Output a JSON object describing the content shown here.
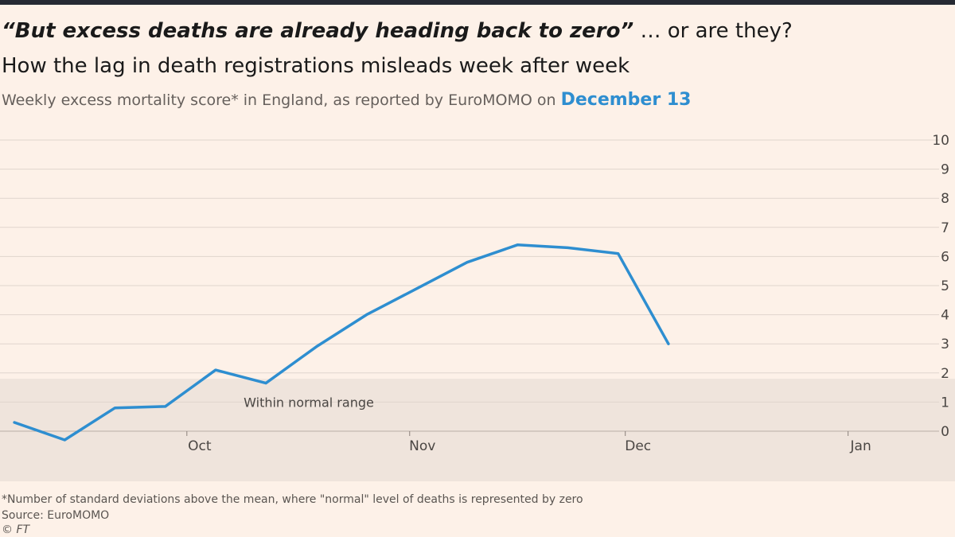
{
  "header": {
    "quote": "“But excess deaths are already heading back to zero”",
    "quote_suffix": " … or are they?",
    "subtitle": "How the lag in death registrations misleads week after week",
    "description": "Weekly excess mortality score* in England, as reported by EuroMOMO on ",
    "date": "December 13"
  },
  "footer": {
    "footnote": "*Number of standard deviations above the mean, where \"normal\" level of deaths is represented by zero",
    "source": "Source: EuroMOMO",
    "copyright": "© FT"
  },
  "colors": {
    "line": "#2e8ed0",
    "background": "#fdf1e8",
    "normal_band": "#efe4dc",
    "grid": "#e0d5cd"
  },
  "chart_data": {
    "type": "line",
    "title": "Weekly excess mortality score* in England",
    "ylabel": "",
    "xlabel": "",
    "ylim": [
      0,
      10
    ],
    "yticks": [
      "0",
      "1",
      "2",
      "3",
      "4",
      "5",
      "6",
      "7",
      "8",
      "9",
      "10"
    ],
    "xticks": [
      {
        "label": "Oct",
        "date": "2020-10-01"
      },
      {
        "label": "Nov",
        "date": "2020-11-01"
      },
      {
        "label": "Dec",
        "date": "2020-12-01"
      },
      {
        "label": "Jan",
        "date": "2021-01-01"
      }
    ],
    "band": {
      "label": "Within normal range",
      "from": -1.8,
      "to": 1.8
    },
    "series": [
      {
        "name": "",
        "x": [
          "2020-09-07",
          "2020-09-14",
          "2020-09-21",
          "2020-09-28",
          "2020-10-05",
          "2020-10-12",
          "2020-10-19",
          "2020-10-26",
          "2020-11-02",
          "2020-11-09",
          "2020-11-16",
          "2020-11-23",
          "2020-11-30",
          "2020-12-07"
        ],
        "values": [
          0.3,
          -0.3,
          0.8,
          0.85,
          2.1,
          1.65,
          2.9,
          4.0,
          4.9,
          5.8,
          6.4,
          6.3,
          6.1,
          3.0
        ]
      }
    ],
    "grid": true
  }
}
